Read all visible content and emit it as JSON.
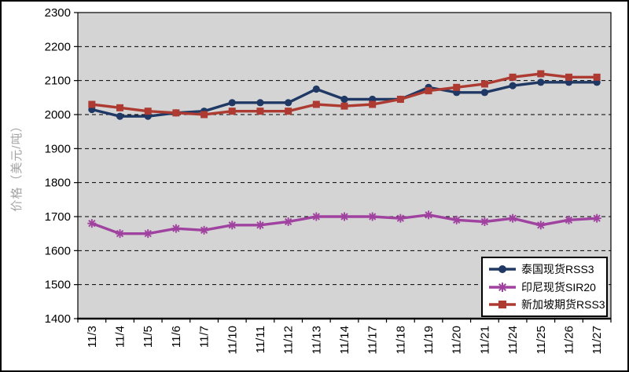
{
  "y_axis_title": "价格（美元/吨）",
  "chart_data": {
    "type": "line",
    "title": "",
    "xlabel": "",
    "ylabel": "价格（美元/吨）",
    "ylim": [
      1400,
      2300
    ],
    "ytick_step": 100,
    "grid": "horizontal-dashed",
    "plot_background": "#D4D4D4",
    "legend_position": "bottom-right-inside",
    "categories": [
      "11/3",
      "11/4",
      "11/5",
      "11/6",
      "11/7",
      "11/10",
      "11/11",
      "11/12",
      "11/13",
      "11/14",
      "11/17",
      "11/18",
      "11/19",
      "11/20",
      "11/21",
      "11/24",
      "11/25",
      "11/26",
      "11/27"
    ],
    "series": [
      {
        "name": "泰国现货RSS3",
        "color": "#1F3864",
        "marker": "circle",
        "values": [
          2015,
          1995,
          1995,
          2005,
          2010,
          2035,
          2035,
          2035,
          2075,
          2045,
          2045,
          2045,
          2080,
          2065,
          2065,
          2085,
          2095,
          2095,
          2095
        ]
      },
      {
        "name": "印尼现货SIR20",
        "color": "#A0429F",
        "marker": "asterisk",
        "values": [
          1680,
          1650,
          1650,
          1665,
          1660,
          1675,
          1675,
          1685,
          1700,
          1700,
          1700,
          1695,
          1705,
          1690,
          1685,
          1695,
          1675,
          1690,
          1695
        ]
      },
      {
        "name": "新加坡期货RSS3",
        "color": "#AE3B32",
        "marker": "square",
        "values": [
          2030,
          2020,
          2010,
          2005,
          2000,
          2010,
          2010,
          2010,
          2030,
          2025,
          2030,
          2045,
          2070,
          2080,
          2090,
          2110,
          2120,
          2110,
          2110
        ]
      }
    ]
  }
}
